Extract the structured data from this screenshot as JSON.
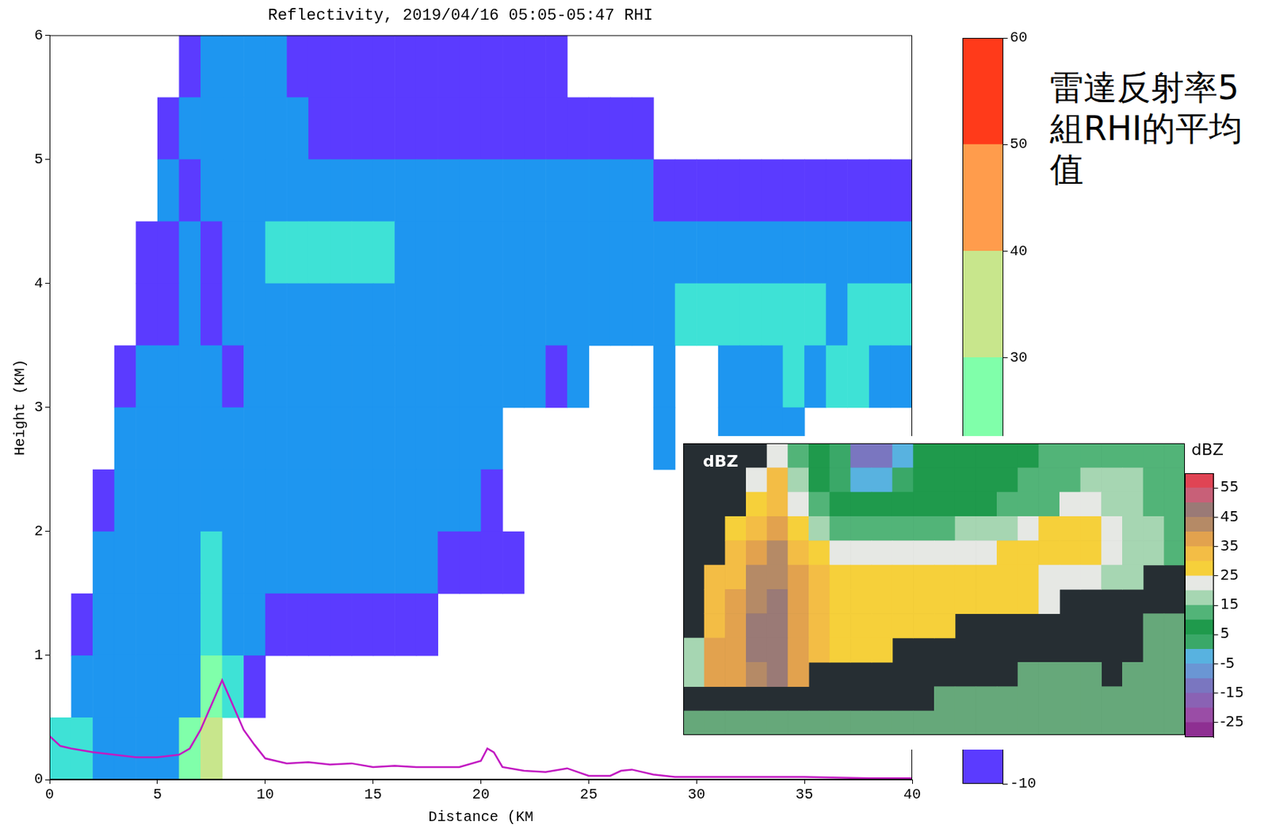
{
  "chart_data": [
    {
      "type": "heatmap",
      "title": "Reflectivity, 2019/04/16 05:05-05:47 RHI",
      "x_label": "Distance (KM",
      "y_label": "Height (KM)",
      "xlim": [
        0,
        40
      ],
      "xticks": [
        0,
        5,
        10,
        15,
        20,
        25,
        30,
        35,
        40
      ],
      "ylim": [
        0,
        6
      ],
      "yticks": [
        0,
        1,
        2,
        3,
        4,
        5,
        6
      ],
      "grid": false,
      "annotation": "雷達反射率5組RHI的平均值",
      "x_edges": [
        0,
        1,
        2,
        3,
        4,
        5,
        6,
        7,
        8,
        9,
        10,
        11,
        12,
        13,
        14,
        15,
        16,
        17,
        18,
        19,
        20,
        21,
        22,
        23,
        24,
        25,
        26,
        27,
        28,
        29,
        30,
        31,
        32,
        33,
        34,
        35,
        36,
        37,
        38,
        39,
        40
      ],
      "y_edges": [
        0,
        0.5,
        1,
        1.5,
        2,
        2.5,
        3,
        3.5,
        4,
        4.5,
        5,
        5.5,
        6
      ],
      "cells": [
        [
          null,
          null,
          null,
          null,
          null,
          null,
          -5,
          5,
          5,
          5,
          5,
          -5,
          -5,
          -5,
          -5,
          -5,
          -5,
          -5,
          -5,
          -5,
          -5,
          -5,
          -5,
          -5,
          null,
          null,
          null,
          null,
          null,
          null,
          null,
          null,
          null,
          null,
          null,
          null,
          null,
          null,
          null,
          null
        ],
        [
          null,
          null,
          null,
          null,
          null,
          -5,
          5,
          5,
          5,
          5,
          5,
          5,
          -5,
          -5,
          -5,
          -5,
          -5,
          -5,
          -5,
          -5,
          -5,
          -5,
          -5,
          -5,
          -5,
          -5,
          -5,
          -5,
          null,
          null,
          null,
          null,
          null,
          null,
          null,
          null,
          null,
          null,
          null,
          null
        ],
        [
          null,
          null,
          null,
          null,
          null,
          5,
          -5,
          5,
          5,
          5,
          5,
          5,
          5,
          5,
          5,
          5,
          5,
          5,
          5,
          5,
          5,
          5,
          5,
          5,
          5,
          5,
          5,
          5,
          -5,
          -5,
          -5,
          -5,
          -5,
          -5,
          -5,
          -5,
          -5,
          -5,
          -5,
          -5
        ],
        [
          null,
          null,
          null,
          null,
          -5,
          -5,
          5,
          -5,
          5,
          5,
          15,
          15,
          15,
          15,
          15,
          15,
          5,
          5,
          5,
          5,
          5,
          5,
          5,
          5,
          5,
          5,
          5,
          5,
          5,
          5,
          5,
          5,
          5,
          5,
          5,
          5,
          5,
          5,
          5,
          5
        ],
        [
          null,
          null,
          null,
          null,
          -5,
          -5,
          5,
          -5,
          5,
          5,
          5,
          5,
          5,
          5,
          5,
          5,
          5,
          5,
          5,
          5,
          5,
          5,
          5,
          5,
          5,
          5,
          5,
          5,
          5,
          15,
          15,
          15,
          15,
          15,
          15,
          15,
          5,
          15,
          15,
          15
        ],
        [
          null,
          null,
          null,
          -5,
          5,
          5,
          5,
          5,
          -5,
          5,
          5,
          5,
          5,
          5,
          5,
          5,
          5,
          5,
          5,
          5,
          5,
          5,
          5,
          -5,
          5,
          null,
          null,
          null,
          5,
          null,
          null,
          5,
          5,
          5,
          15,
          5,
          15,
          15,
          5,
          5
        ],
        [
          null,
          null,
          null,
          5,
          5,
          5,
          5,
          5,
          5,
          5,
          5,
          5,
          5,
          5,
          5,
          5,
          5,
          5,
          5,
          5,
          5,
          null,
          null,
          null,
          null,
          null,
          null,
          null,
          5,
          null,
          null,
          5,
          5,
          5,
          5,
          null,
          null,
          null,
          null,
          null
        ],
        [
          null,
          null,
          -5,
          5,
          5,
          5,
          5,
          5,
          5,
          5,
          5,
          5,
          5,
          5,
          5,
          5,
          5,
          5,
          5,
          5,
          -5,
          null,
          null,
          null,
          null,
          null,
          null,
          null,
          null,
          null,
          null,
          null,
          null,
          null,
          null,
          null,
          null,
          null,
          null,
          null
        ],
        [
          null,
          null,
          5,
          5,
          5,
          5,
          5,
          15,
          5,
          5,
          5,
          5,
          5,
          5,
          5,
          5,
          5,
          5,
          -5,
          -5,
          -5,
          -5,
          null,
          null,
          null,
          null,
          null,
          null,
          null,
          null,
          null,
          null,
          null,
          null,
          null,
          null,
          null,
          null,
          null,
          null
        ],
        [
          null,
          -5,
          5,
          5,
          5,
          5,
          5,
          15,
          5,
          5,
          -5,
          -5,
          -5,
          -5,
          -5,
          -5,
          -5,
          -5,
          null,
          null,
          null,
          null,
          null,
          null,
          null,
          null,
          null,
          null,
          null,
          null,
          null,
          null,
          null,
          null,
          null,
          null,
          null,
          null,
          null,
          null
        ],
        [
          null,
          5,
          5,
          5,
          5,
          5,
          5,
          25,
          15,
          -5,
          null,
          null,
          null,
          null,
          null,
          null,
          null,
          null,
          null,
          null,
          null,
          null,
          null,
          null,
          null,
          null,
          null,
          null,
          null,
          null,
          null,
          null,
          null,
          null,
          null,
          null,
          null,
          null,
          null,
          null
        ],
        [
          15,
          15,
          5,
          5,
          5,
          5,
          25,
          35,
          null,
          null,
          null,
          null,
          null,
          null,
          null,
          null,
          null,
          null,
          null,
          null,
          null,
          null,
          null,
          null,
          null,
          null,
          null,
          null,
          null,
          null,
          null,
          null,
          null,
          null,
          null,
          null,
          null,
          null,
          null,
          null
        ]
      ],
      "lines": [
        {
          "color": "#c21ac2",
          "x": [
            0,
            0.5,
            1,
            2,
            3,
            4,
            5,
            6,
            6.5,
            7,
            7.5,
            8,
            8.5,
            9,
            9.5,
            10,
            11,
            12,
            13,
            14,
            15,
            16,
            17,
            18,
            19,
            20,
            20.3,
            20.6,
            21,
            22,
            23,
            24,
            25,
            26,
            26.5,
            27,
            28,
            29,
            30,
            32,
            35,
            38,
            40
          ],
          "values": [
            0.35,
            0.27,
            0.25,
            0.22,
            0.2,
            0.18,
            0.18,
            0.2,
            0.25,
            0.4,
            0.6,
            0.8,
            0.6,
            0.4,
            0.28,
            0.17,
            0.13,
            0.14,
            0.12,
            0.13,
            0.1,
            0.11,
            0.1,
            0.1,
            0.1,
            0.15,
            0.25,
            0.22,
            0.1,
            0.07,
            0.06,
            0.09,
            0.03,
            0.03,
            0.07,
            0.08,
            0.04,
            0.02,
            0.02,
            0.02,
            0.02,
            0.01,
            0.01
          ]
        }
      ],
      "colorbar": {
        "lim": [
          -10,
          60
        ],
        "ticks": [
          -10,
          30,
          40,
          50,
          60
        ],
        "bounds": [
          -10,
          0,
          10,
          20,
          30,
          40,
          50,
          60
        ],
        "colors": [
          "#5b3bff",
          "#1e96f0",
          "#3ee2d6",
          "#80ffaa",
          "#c8e68c",
          "#ff9c4c",
          "#ff3a1a"
        ]
      }
    },
    {
      "type": "heatmap",
      "label": "dBZ",
      "tick_labels": false,
      "grid": false,
      "cells": [
        [
          null,
          null,
          null,
          null,
          20,
          10,
          5,
          0,
          -15,
          -15,
          -5,
          5,
          8,
          8,
          8,
          8,
          8,
          12,
          12,
          12,
          12,
          12,
          12,
          12
        ],
        [
          null,
          null,
          null,
          22,
          30,
          15,
          5,
          3,
          -3,
          -5,
          3,
          5,
          8,
          8,
          8,
          8,
          12,
          12,
          12,
          15,
          15,
          17,
          12,
          12
        ],
        [
          null,
          null,
          null,
          28,
          32,
          20,
          12,
          8,
          5,
          5,
          5,
          8,
          8,
          8,
          8,
          14,
          14,
          14,
          22,
          20,
          18,
          17,
          14,
          12
        ],
        [
          null,
          null,
          25,
          32,
          35,
          25,
          17,
          14,
          12,
          12,
          12,
          12,
          12,
          16,
          16,
          16,
          22,
          26,
          26,
          26,
          22,
          18,
          15,
          13
        ],
        [
          null,
          null,
          30,
          36,
          40,
          32,
          25,
          22,
          20,
          20,
          20,
          20,
          22,
          22,
          22,
          26,
          26,
          26,
          26,
          26,
          24,
          18,
          15,
          13
        ],
        [
          null,
          30,
          33,
          40,
          44,
          36,
          30,
          27,
          27,
          27,
          27,
          26,
          26,
          26,
          26,
          26,
          26,
          24,
          24,
          20,
          17,
          15,
          null,
          null
        ],
        [
          null,
          32,
          36,
          44,
          46,
          38,
          32,
          28,
          28,
          28,
          28,
          28,
          28,
          27,
          27,
          27,
          27,
          24,
          null,
          null,
          null,
          null,
          null,
          null
        ],
        [
          null,
          34,
          37,
          45,
          46,
          38,
          32,
          28,
          28,
          28,
          28,
          28,
          28,
          null,
          null,
          null,
          null,
          null,
          null,
          null,
          null,
          null,
          null,
          null
        ],
        [
          15,
          35,
          38,
          45,
          47,
          38,
          32,
          28,
          28,
          28,
          null,
          null,
          null,
          null,
          null,
          null,
          null,
          null,
          null,
          null,
          null,
          null,
          null,
          null
        ],
        [
          15,
          36,
          38,
          42,
          45,
          35,
          null,
          null,
          null,
          null,
          null,
          null,
          null,
          null,
          null,
          null,
          null,
          null,
          null,
          null,
          null,
          null,
          null,
          null
        ],
        [
          null,
          null,
          null,
          null,
          null,
          null,
          null,
          null,
          null,
          null,
          null,
          null,
          null,
          null,
          null,
          null,
          null,
          null,
          null,
          null,
          null,
          null,
          null,
          null
        ],
        [
          null,
          null,
          null,
          null,
          null,
          null,
          null,
          null,
          null,
          null,
          null,
          null,
          null,
          null,
          null,
          null,
          null,
          null,
          null,
          null,
          null,
          null,
          null,
          null
        ]
      ],
      "ground": [
        1,
        1,
        1,
        1,
        1,
        1,
        1,
        1,
        1,
        1,
        1,
        1,
        2,
        2,
        2,
        2,
        3,
        3,
        3,
        3,
        2,
        3,
        5,
        5
      ],
      "colorbar": {
        "title": "dBZ",
        "lim": [
          -30,
          60
        ],
        "ticks": [
          -25,
          -15,
          -5,
          5,
          15,
          25,
          35,
          45,
          55
        ],
        "bounds": [
          -30,
          -25,
          -20,
          -15,
          -10,
          -5,
          0,
          5,
          10,
          15,
          20,
          25,
          30,
          35,
          40,
          45,
          50,
          55,
          60
        ],
        "colors": [
          "#8e2f92",
          "#9a4da6",
          "#8a62b4",
          "#7a76c0",
          "#6a96d4",
          "#58b2e0",
          "#3aa868",
          "#1f9a4c",
          "#52b478",
          "#a6d6b2",
          "#e6e8e4",
          "#f6d03a",
          "#f3bd45",
          "#e2a24e",
          "#b58a66",
          "#9a7a76",
          "#c86078",
          "#e04454"
        ]
      }
    }
  ]
}
